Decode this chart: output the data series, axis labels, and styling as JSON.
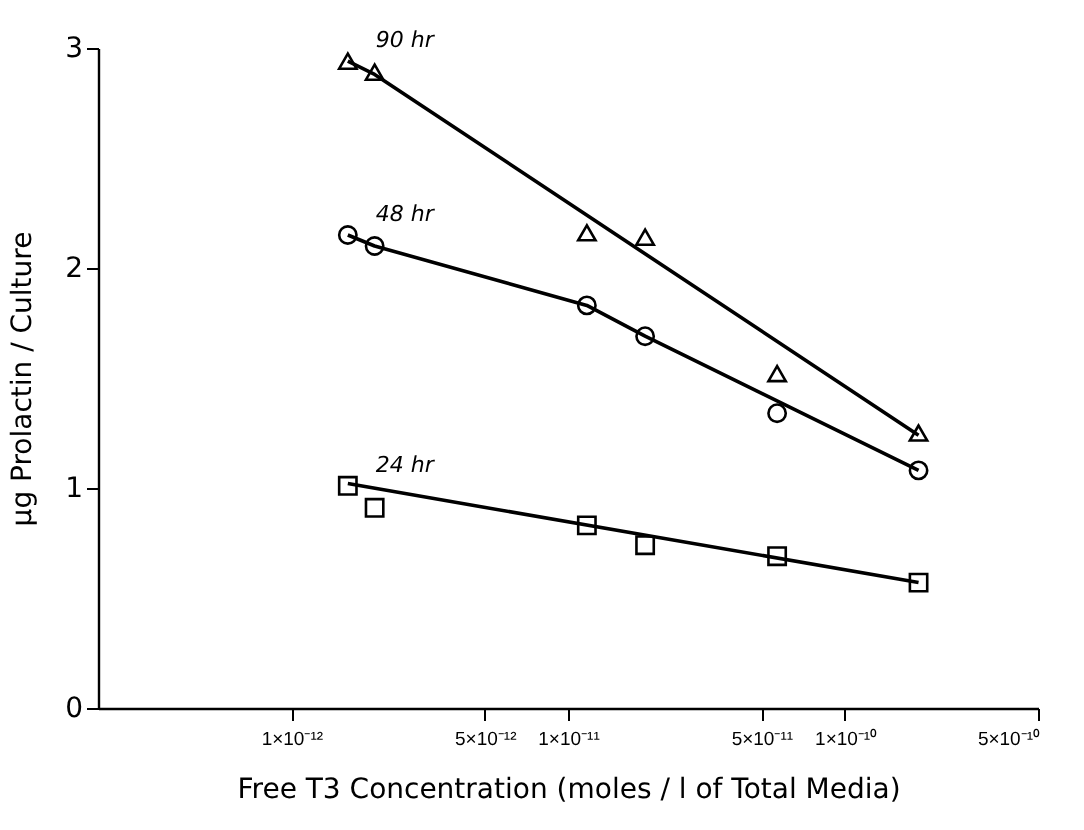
{
  "chart_data": {
    "type": "scatter",
    "xlabel": "Free T3  Concentration (moles / l of Total Media)",
    "ylabel": "μg Prolactin / Culture",
    "log": "x",
    "xlim": [
      2e-13,
      5e-10
    ],
    "xticks": [
      {
        "value": 1e-12,
        "label": "1×10⁻¹²"
      },
      {
        "value": 5e-12,
        "label": "5×10⁻¹²"
      },
      {
        "value": 1e-11,
        "label": "1×10⁻¹¹"
      },
      {
        "value": 5e-11,
        "label": "5×10⁻¹¹"
      },
      {
        "value": 1e-10,
        "label": "1×10⁻¹⁰"
      },
      {
        "value": 5e-10,
        "label": "5×10⁻¹⁰"
      }
    ],
    "ylim": [
      0,
      3
    ],
    "yticks": [
      0,
      1,
      2,
      3
    ],
    "grid": false,
    "series": [
      {
        "name": "90 hr",
        "marker": "triangle",
        "color": "#000000",
        "x": [
          1.6e-12,
          2e-12,
          1.17e-11,
          1.9e-11,
          5.7e-11,
          1.85e-10
        ],
        "values": [
          2.94,
          2.89,
          2.16,
          2.14,
          1.52,
          1.25
        ]
      },
      {
        "name": "48 hr",
        "marker": "circle",
        "color": "#000000",
        "x": [
          1.6e-12,
          2e-12,
          1.17e-11,
          1.9e-11,
          5.7e-11,
          1.85e-10
        ],
        "values": [
          2.15,
          2.1,
          1.83,
          1.69,
          1.34,
          1.08
        ]
      },
      {
        "name": "24 hr",
        "marker": "square",
        "color": "#000000",
        "x": [
          1.6e-12,
          2e-12,
          1.17e-11,
          1.9e-11,
          5.7e-11,
          1.85e-10
        ],
        "values": [
          1.01,
          0.91,
          0.83,
          0.74,
          0.69,
          0.57
        ]
      },
      {
        "type": "line",
        "marker": "none",
        "line_style": "solid",
        "color": "#000000",
        "x": [
          1.6e-12,
          2e-12,
          1.85e-10
        ],
        "values": [
          2.94,
          2.88,
          1.24
        ]
      },
      {
        "type": "line",
        "marker": "none",
        "line_style": "solid",
        "color": "#000000",
        "x": [
          1.6e-12,
          2e-12,
          1.17e-11,
          1.9e-11,
          1.85e-10
        ],
        "values": [
          2.15,
          2.1,
          1.83,
          1.69,
          1.08
        ]
      },
      {
        "type": "line",
        "marker": "none",
        "line_style": "solid",
        "color": "#000000",
        "x": [
          1.6e-12,
          1.85e-10
        ],
        "values": [
          1.02,
          0.57
        ]
      }
    ]
  }
}
